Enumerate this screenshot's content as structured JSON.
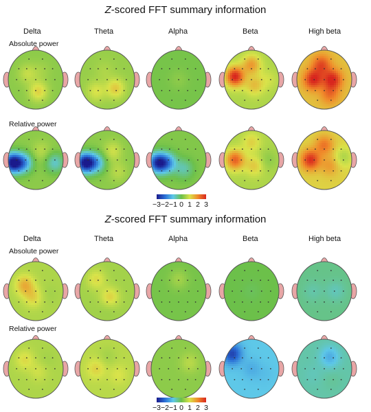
{
  "panels": [
    {
      "title_italic": "Z",
      "title_rest": "-scored FFT summary information",
      "bands": [
        "Delta",
        "Theta",
        "Alpha",
        "Beta",
        "High beta"
      ],
      "row_labels": [
        "Absolute power",
        "Relative power"
      ],
      "colorbar": {
        "ticks": [
          "−3",
          "−2",
          "−1",
          "0",
          "1",
          "2",
          "3"
        ],
        "range": [
          -3,
          3
        ]
      }
    },
    {
      "title_italic": "Z",
      "title_rest": "-scored FFT summary information",
      "bands": [
        "Delta",
        "Theta",
        "Alpha",
        "Beta",
        "High beta"
      ],
      "row_labels": [
        "Absolute power",
        "Relative power"
      ],
      "colorbar": {
        "ticks": [
          "−3",
          "−2",
          "−1",
          "0",
          "1",
          "2",
          "3"
        ],
        "range": [
          -3,
          3
        ]
      }
    }
  ],
  "colors": {
    "z_neg3": "#1a1a8c",
    "z_neg2": "#2a6fd6",
    "z_neg1": "#5ec8e8",
    "z_zero": "#6cc04a",
    "z_pos1": "#d9e34a",
    "z_pos2": "#f08a2a",
    "z_pos3": "#d8261e",
    "ear_nose": "#e8a6a6",
    "outline": "#555555",
    "electrode": "#333333"
  },
  "maps": [
    [
      [
        {
          "base": 0.3,
          "blobs": [
            [
              0.35,
              0.4,
              0.8
            ],
            [
              0.55,
              0.7,
              1.2
            ],
            [
              0.6,
              0.35,
              0.5
            ]
          ]
        },
        {
          "base": 0.4,
          "blobs": [
            [
              0.65,
              0.65,
              1.3
            ],
            [
              0.3,
              0.7,
              1.0
            ],
            [
              0.45,
              0.35,
              0.6
            ]
          ]
        },
        {
          "base": 0.1,
          "blobs": [
            [
              0.5,
              0.5,
              0.3
            ]
          ]
        },
        {
          "base": 0.6,
          "blobs": [
            [
              0.2,
              0.45,
              3.0
            ],
            [
              0.5,
              0.25,
              1.8
            ],
            [
              0.55,
              0.6,
              1.4
            ],
            [
              0.8,
              0.5,
              0.9
            ]
          ]
        },
        {
          "base": 1.4,
          "blobs": [
            [
              0.3,
              0.5,
              3.0
            ],
            [
              0.65,
              0.5,
              3.0
            ],
            [
              0.45,
              0.25,
              2.6
            ],
            [
              0.6,
              0.75,
              2.2
            ]
          ]
        }
      ],
      [
        {
          "base": 0.3,
          "blobs": [
            [
              0.08,
              0.55,
              -3.0
            ],
            [
              0.28,
              0.55,
              -1.4
            ],
            [
              0.6,
              0.35,
              0.7
            ],
            [
              0.85,
              0.55,
              -0.8
            ]
          ]
        },
        {
          "base": 0.3,
          "blobs": [
            [
              0.1,
              0.55,
              -3.0
            ],
            [
              0.3,
              0.55,
              -1.2
            ],
            [
              0.6,
              0.35,
              0.9
            ],
            [
              0.7,
              0.7,
              0.7
            ]
          ]
        },
        {
          "base": 0.2,
          "blobs": [
            [
              0.12,
              0.55,
              -2.6
            ],
            [
              0.3,
              0.55,
              -1.4
            ],
            [
              0.6,
              0.65,
              -0.6
            ]
          ]
        },
        {
          "base": 0.6,
          "blobs": [
            [
              0.2,
              0.5,
              2.4
            ],
            [
              0.5,
              0.2,
              1.2
            ],
            [
              0.55,
              0.6,
              1.3
            ],
            [
              0.8,
              0.5,
              0.3
            ]
          ]
        },
        {
          "base": 1.2,
          "blobs": [
            [
              0.25,
              0.5,
              2.9
            ],
            [
              0.5,
              0.25,
              2.2
            ],
            [
              0.6,
              0.6,
              1.8
            ],
            [
              0.85,
              0.45,
              0.6
            ]
          ]
        }
      ]
    ],
    [
      [
        {
          "base": 0.6,
          "blobs": [
            [
              0.3,
              0.4,
              1.6
            ],
            [
              0.45,
              0.6,
              1.2
            ],
            [
              0.75,
              0.55,
              0.5
            ]
          ]
        },
        {
          "base": 0.5,
          "blobs": [
            [
              0.3,
              0.3,
              1.1
            ],
            [
              0.55,
              0.6,
              1.2
            ],
            [
              0.5,
              0.8,
              0.4
            ]
          ]
        },
        {
          "base": 0.1,
          "blobs": [
            [
              0.5,
              0.3,
              0.5
            ]
          ]
        },
        {
          "base": 0.0,
          "blobs": [
            [
              0.5,
              0.5,
              -0.1
            ]
          ]
        },
        {
          "base": -0.4,
          "blobs": [
            [
              0.3,
              0.5,
              -0.6
            ],
            [
              0.7,
              0.5,
              -0.7
            ]
          ]
        }
      ],
      [
        {
          "base": 0.6,
          "blobs": [
            [
              0.3,
              0.35,
              1.1
            ],
            [
              0.55,
              0.55,
              0.9
            ],
            [
              0.7,
              0.35,
              0.5
            ]
          ]
        },
        {
          "base": 0.7,
          "blobs": [
            [
              0.3,
              0.5,
              1.2
            ],
            [
              0.7,
              0.6,
              1.0
            ],
            [
              0.5,
              0.3,
              0.5
            ]
          ]
        },
        {
          "base": 0.3,
          "blobs": [
            [
              0.7,
              0.4,
              0.7
            ],
            [
              0.3,
              0.6,
              0.3
            ]
          ]
        },
        {
          "base": -1.0,
          "blobs": [
            [
              0.15,
              0.25,
              -2.5
            ],
            [
              0.5,
              0.5,
              -1.3
            ],
            [
              0.75,
              0.6,
              -1.1
            ]
          ]
        },
        {
          "base": -0.6,
          "blobs": [
            [
              0.6,
              0.3,
              -1.3
            ],
            [
              0.3,
              0.6,
              -0.7
            ],
            [
              0.65,
              0.7,
              -0.5
            ]
          ]
        }
      ]
    ]
  ]
}
